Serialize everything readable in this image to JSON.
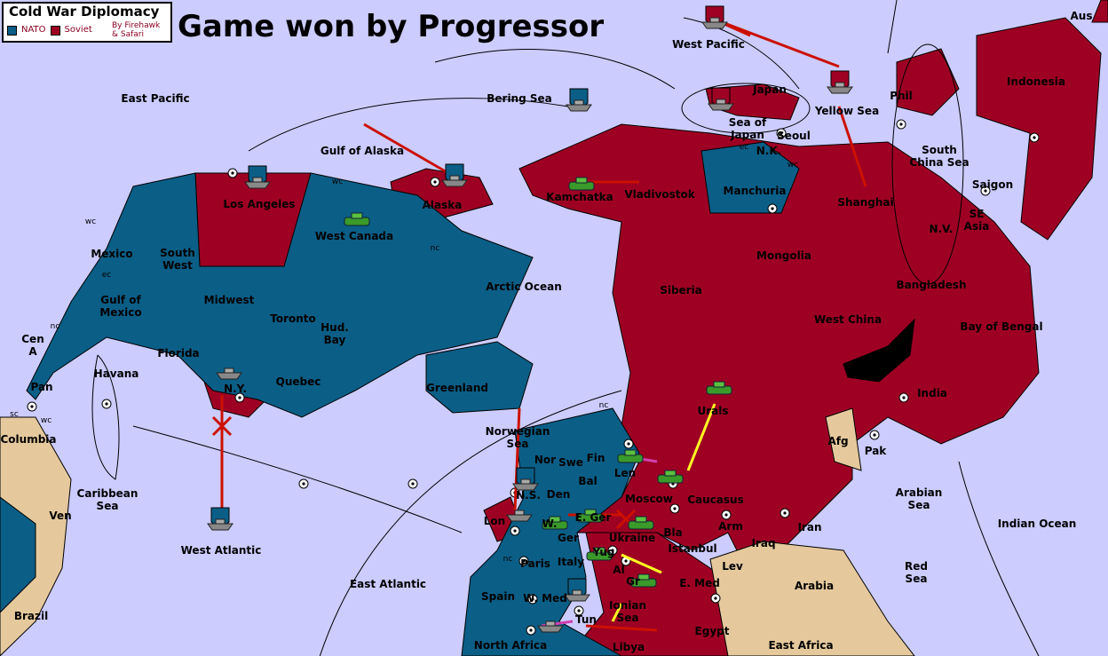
{
  "legend": {
    "title": "Cold War Diplomacy",
    "powers": [
      {
        "name": "NATO",
        "color": "#0b5e86"
      },
      {
        "name": "Soviet",
        "color": "#9e0023"
      }
    ],
    "credit_line1": "By Firehawk",
    "credit_line2": "& Safari"
  },
  "status": {
    "title": "Game won by Progressor"
  },
  "colors": {
    "sea": "#ccccff",
    "nato": "#0b5e86",
    "soviet": "#9e0023",
    "neutral": "#e5c99d",
    "impassable": "#000000"
  },
  "regions": [
    "Aus",
    "West Pacific",
    "East Pacific",
    "Bering Sea",
    "Japan",
    "Yellow Sea",
    "Phil",
    "Indonesia",
    "Gulf of Alaska",
    "Sea of\nJapan",
    "Seoul",
    "N.K.",
    "South\nChina Sea",
    "Saigon",
    "Alaska",
    "Kamchatka",
    "Vladivostok",
    "Manchuria",
    "Shanghai",
    "Los Angeles",
    "West Canada",
    "SE\nAsia",
    "N.V.",
    "Mexico",
    "South\nWest",
    "Mongolia",
    "Arctic Ocean",
    "Siberia",
    "Bangladesh",
    "Gulf of\nMexico",
    "Midwest",
    "Toronto",
    "Hud.\nBay",
    "West China",
    "Bay of Bengal",
    "Florida",
    "Quebec",
    "Cen\nA",
    "Havana",
    "Pan",
    "Greenland",
    "N.Y.",
    "India",
    "Urals",
    "Columbia",
    "Norwegian\nSea",
    "Afg",
    "Pak",
    "Nor",
    "Swe",
    "Fin",
    "Len",
    "Caribbean\nSea",
    "Lon",
    "N.S.",
    "Den",
    "Bal",
    "Moscow",
    "Caucasus",
    "Arabian\nSea",
    "Ven",
    "West Atlantic",
    "W.",
    "E. Ger",
    "Ger",
    "Ukraine",
    "Bla",
    "Iran",
    "Indian Ocean",
    "Arm",
    "Paris",
    "Italy",
    "Yug",
    "Istanbul",
    "Iraq",
    "Lev",
    "Red\nSea",
    "East Atlantic",
    "Al",
    "Gr",
    "E. Med",
    "Arabia",
    "Spain",
    "W. Med",
    "Ionian\nSea",
    "Brazil",
    "Tun",
    "Libya",
    "Egypt",
    "North Africa",
    "East Africa"
  ],
  "coast_tags": [
    "wc",
    "ec",
    "nc",
    "ec",
    "wc",
    "nc",
    "wc",
    "nc",
    "sc",
    "wc",
    "nc"
  ],
  "units": {
    "fleets": 12,
    "armies": 11
  }
}
